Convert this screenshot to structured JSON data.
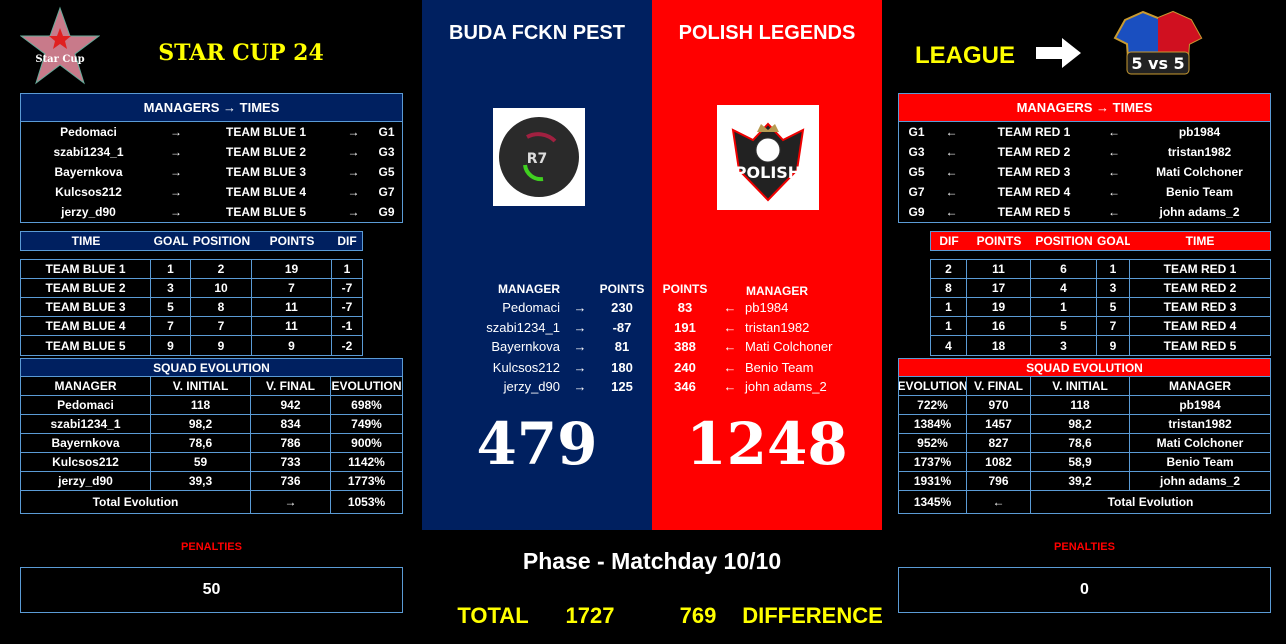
{
  "header": {
    "cup_title": "STAR CUP 24",
    "star_logo_text": "Star Cup",
    "league_label": "LEAGUE",
    "league_logo_text": "5 vs 5"
  },
  "colors": {
    "blue": "#002060",
    "red": "#ff0000",
    "yellow": "#ffff00",
    "border": "#5b9bd5"
  },
  "blue": {
    "team_name": "BUDA FCKN PEST",
    "managers_title": "MANAGERS → TIMES",
    "managers": [
      {
        "manager": "Pedomaci",
        "arrow": "→",
        "team": "TEAM BLUE 1",
        "arrow2": "→",
        "group": "G1"
      },
      {
        "manager": "szabi1234_1",
        "arrow": "→",
        "team": "TEAM BLUE 2",
        "arrow2": "→",
        "group": "G3"
      },
      {
        "manager": "Bayernkova",
        "arrow": "→",
        "team": "TEAM BLUE 3",
        "arrow2": "→",
        "group": "G5"
      },
      {
        "manager": "Kulcsos212",
        "arrow": "→",
        "team": "TEAM BLUE 4",
        "arrow2": "→",
        "group": "G7"
      },
      {
        "manager": "jerzy_d90",
        "arrow": "→",
        "team": "TEAM BLUE 5",
        "arrow2": "→",
        "group": "G9"
      }
    ],
    "standings_headers": [
      "TIME",
      "GOAL",
      "POSITION",
      "POINTS",
      "DIF"
    ],
    "standings": [
      [
        "TEAM BLUE 1",
        "1",
        "2",
        "19",
        "1"
      ],
      [
        "TEAM BLUE 2",
        "3",
        "10",
        "7",
        "-7"
      ],
      [
        "TEAM BLUE 3",
        "5",
        "8",
        "11",
        "-7"
      ],
      [
        "TEAM BLUE 4",
        "7",
        "7",
        "11",
        "-1"
      ],
      [
        "TEAM BLUE 5",
        "9",
        "9",
        "9",
        "-2"
      ]
    ],
    "squad_title": "SQUAD EVOLUTION",
    "squad_headers": [
      "MANAGER",
      "V. INITIAL",
      "V. FINAL",
      "EVOLUTION"
    ],
    "squad": [
      [
        "Pedomaci",
        "118",
        "942",
        "698%"
      ],
      [
        "szabi1234_1",
        "98,2",
        "834",
        "749%"
      ],
      [
        "Bayernkova",
        "78,6",
        "786",
        "900%"
      ],
      [
        "Kulcsos212",
        "59",
        "733",
        "1142%"
      ],
      [
        "jerzy_d90",
        "39,3",
        "736",
        "1773%"
      ]
    ],
    "squad_total": {
      "label": "Total Evolution",
      "arrow": "→",
      "value": "1053%"
    },
    "penalties_label": "PENALTIES",
    "penalties": "50",
    "points_headers": {
      "manager": "MANAGER",
      "points": "POINTS"
    },
    "points": [
      {
        "manager": "Pedomaci",
        "arrow": "→",
        "points": "230"
      },
      {
        "manager": "szabi1234_1",
        "arrow": "→",
        "points": "-87"
      },
      {
        "manager": "Bayernkova",
        "arrow": "→",
        "points": "81"
      },
      {
        "manager": "Kulcsos212",
        "arrow": "→",
        "points": "180"
      },
      {
        "manager": "jerzy_d90",
        "arrow": "→",
        "points": "125"
      }
    ],
    "score": "479"
  },
  "red": {
    "team_name": "POLISH LEGENDS",
    "logo_text": "POLISH",
    "managers_title": "MANAGERS → TIMES",
    "managers": [
      {
        "group": "G1",
        "arrow": "←",
        "team": "TEAM RED 1",
        "arrow2": "←",
        "manager": "pb1984"
      },
      {
        "group": "G3",
        "arrow": "←",
        "team": "TEAM RED 2",
        "arrow2": "←",
        "manager": "tristan1982"
      },
      {
        "group": "G5",
        "arrow": "←",
        "team": "TEAM RED 3",
        "arrow2": "←",
        "manager": "Mati Colchoner"
      },
      {
        "group": "G7",
        "arrow": "←",
        "team": "TEAM RED 4",
        "arrow2": "←",
        "manager": "Benio Team"
      },
      {
        "group": "G9",
        "arrow": "←",
        "team": "TEAM RED 5",
        "arrow2": "←",
        "manager": "john adams_2"
      }
    ],
    "standings_headers": [
      "DIF",
      "POINTS",
      "POSITION",
      "GOAL",
      "TIME"
    ],
    "standings": [
      [
        "2",
        "11",
        "6",
        "1",
        "TEAM RED 1"
      ],
      [
        "8",
        "17",
        "4",
        "3",
        "TEAM RED 2"
      ],
      [
        "1",
        "19",
        "1",
        "5",
        "TEAM RED 3"
      ],
      [
        "1",
        "16",
        "5",
        "7",
        "TEAM RED 4"
      ],
      [
        "4",
        "18",
        "3",
        "9",
        "TEAM RED 5"
      ]
    ],
    "squad_title": "SQUAD EVOLUTION",
    "squad_headers": [
      "EVOLUTION",
      "V. FINAL",
      "V. INITIAL",
      "MANAGER"
    ],
    "squad": [
      [
        "722%",
        "970",
        "118",
        "pb1984"
      ],
      [
        "1384%",
        "1457",
        "98,2",
        "tristan1982"
      ],
      [
        "952%",
        "827",
        "78,6",
        "Mati Colchoner"
      ],
      [
        "1737%",
        "1082",
        "58,9",
        "Benio Team"
      ],
      [
        "1931%",
        "796",
        "39,2",
        "john adams_2"
      ]
    ],
    "squad_total": {
      "value": "1345%",
      "arrow": "←",
      "label": "Total Evolution"
    },
    "penalties_label": "PENALTIES",
    "penalties": "0",
    "points_headers": {
      "points": "POINTS",
      "manager": "MANAGER"
    },
    "points": [
      {
        "points": "83",
        "arrow": "←",
        "manager": "pb1984"
      },
      {
        "points": "191",
        "arrow": "←",
        "manager": "tristan1982"
      },
      {
        "points": "388",
        "arrow": "←",
        "manager": "Mati Colchoner"
      },
      {
        "points": "240",
        "arrow": "←",
        "manager": "Benio Team"
      },
      {
        "points": "346",
        "arrow": "←",
        "manager": "john adams_2"
      }
    ],
    "score": "1248"
  },
  "footer": {
    "phase": "Phase - Matchday 10/10",
    "total_label": "TOTAL",
    "total_blue": "1727",
    "total_red": "769",
    "difference_label": "DIFFERENCE"
  }
}
